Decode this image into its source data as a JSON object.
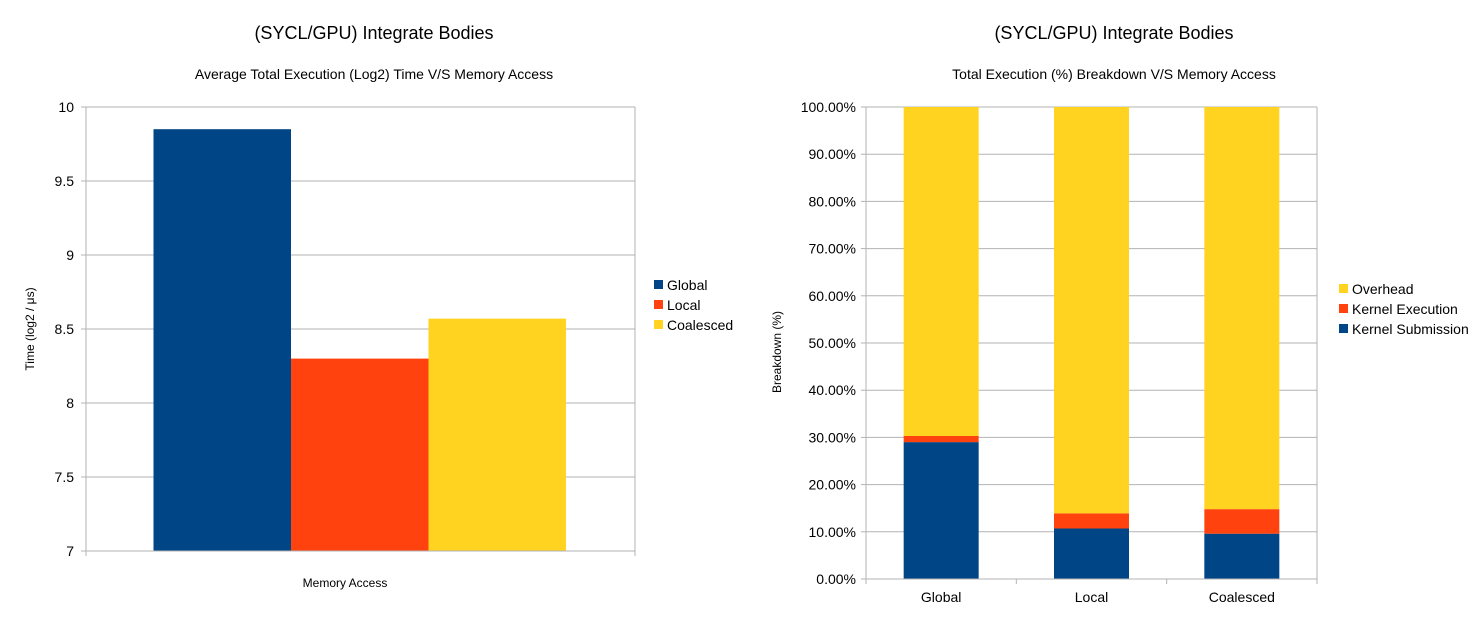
{
  "chart_data": [
    {
      "type": "bar",
      "title": "(SYCL/GPU) Integrate Bodies",
      "subtitle": "Average Total Execution (Log2) Time V/S Memory Access",
      "xlabel": "Memory Access",
      "ylabel": "Time (log2 / μs)",
      "ylim": [
        7,
        10
      ],
      "yticks": [
        "7",
        "7.5",
        "8",
        "8.5",
        "9",
        "9.5",
        "10"
      ],
      "grid": true,
      "legend_position": "right",
      "series": [
        {
          "name": "Global",
          "color": "#004586",
          "values": [
            9.85
          ]
        },
        {
          "name": "Local",
          "color": "#ff420e",
          "values": [
            8.3
          ]
        },
        {
          "name": "Coalesced",
          "color": "#ffd320",
          "values": [
            8.57
          ]
        }
      ]
    },
    {
      "type": "bar",
      "stacked": true,
      "title": "(SYCL/GPU) Integrate Bodies",
      "subtitle": "Total Execution (%) Breakdown V/S Memory Access",
      "xlabel": "",
      "ylabel": "Breakdown (%)",
      "ylim": [
        0,
        100
      ],
      "yticks": [
        "0.00%",
        "10.00%",
        "20.00%",
        "30.00%",
        "40.00%",
        "50.00%",
        "60.00%",
        "70.00%",
        "80.00%",
        "90.00%",
        "100.00%"
      ],
      "grid": true,
      "legend_position": "right",
      "categories": [
        "Global",
        "Local",
        "Coalesced"
      ],
      "series": [
        {
          "name": "Kernel Submission",
          "color": "#004586",
          "values": [
            29.0,
            10.7,
            9.6
          ]
        },
        {
          "name": "Kernel Execution",
          "color": "#ff420e",
          "values": [
            1.3,
            3.2,
            5.2
          ]
        },
        {
          "name": "Overhead",
          "color": "#ffd320",
          "values": [
            69.7,
            86.1,
            85.2
          ]
        }
      ],
      "legend_order": [
        "Overhead",
        "Kernel Execution",
        "Kernel Submission"
      ]
    }
  ]
}
